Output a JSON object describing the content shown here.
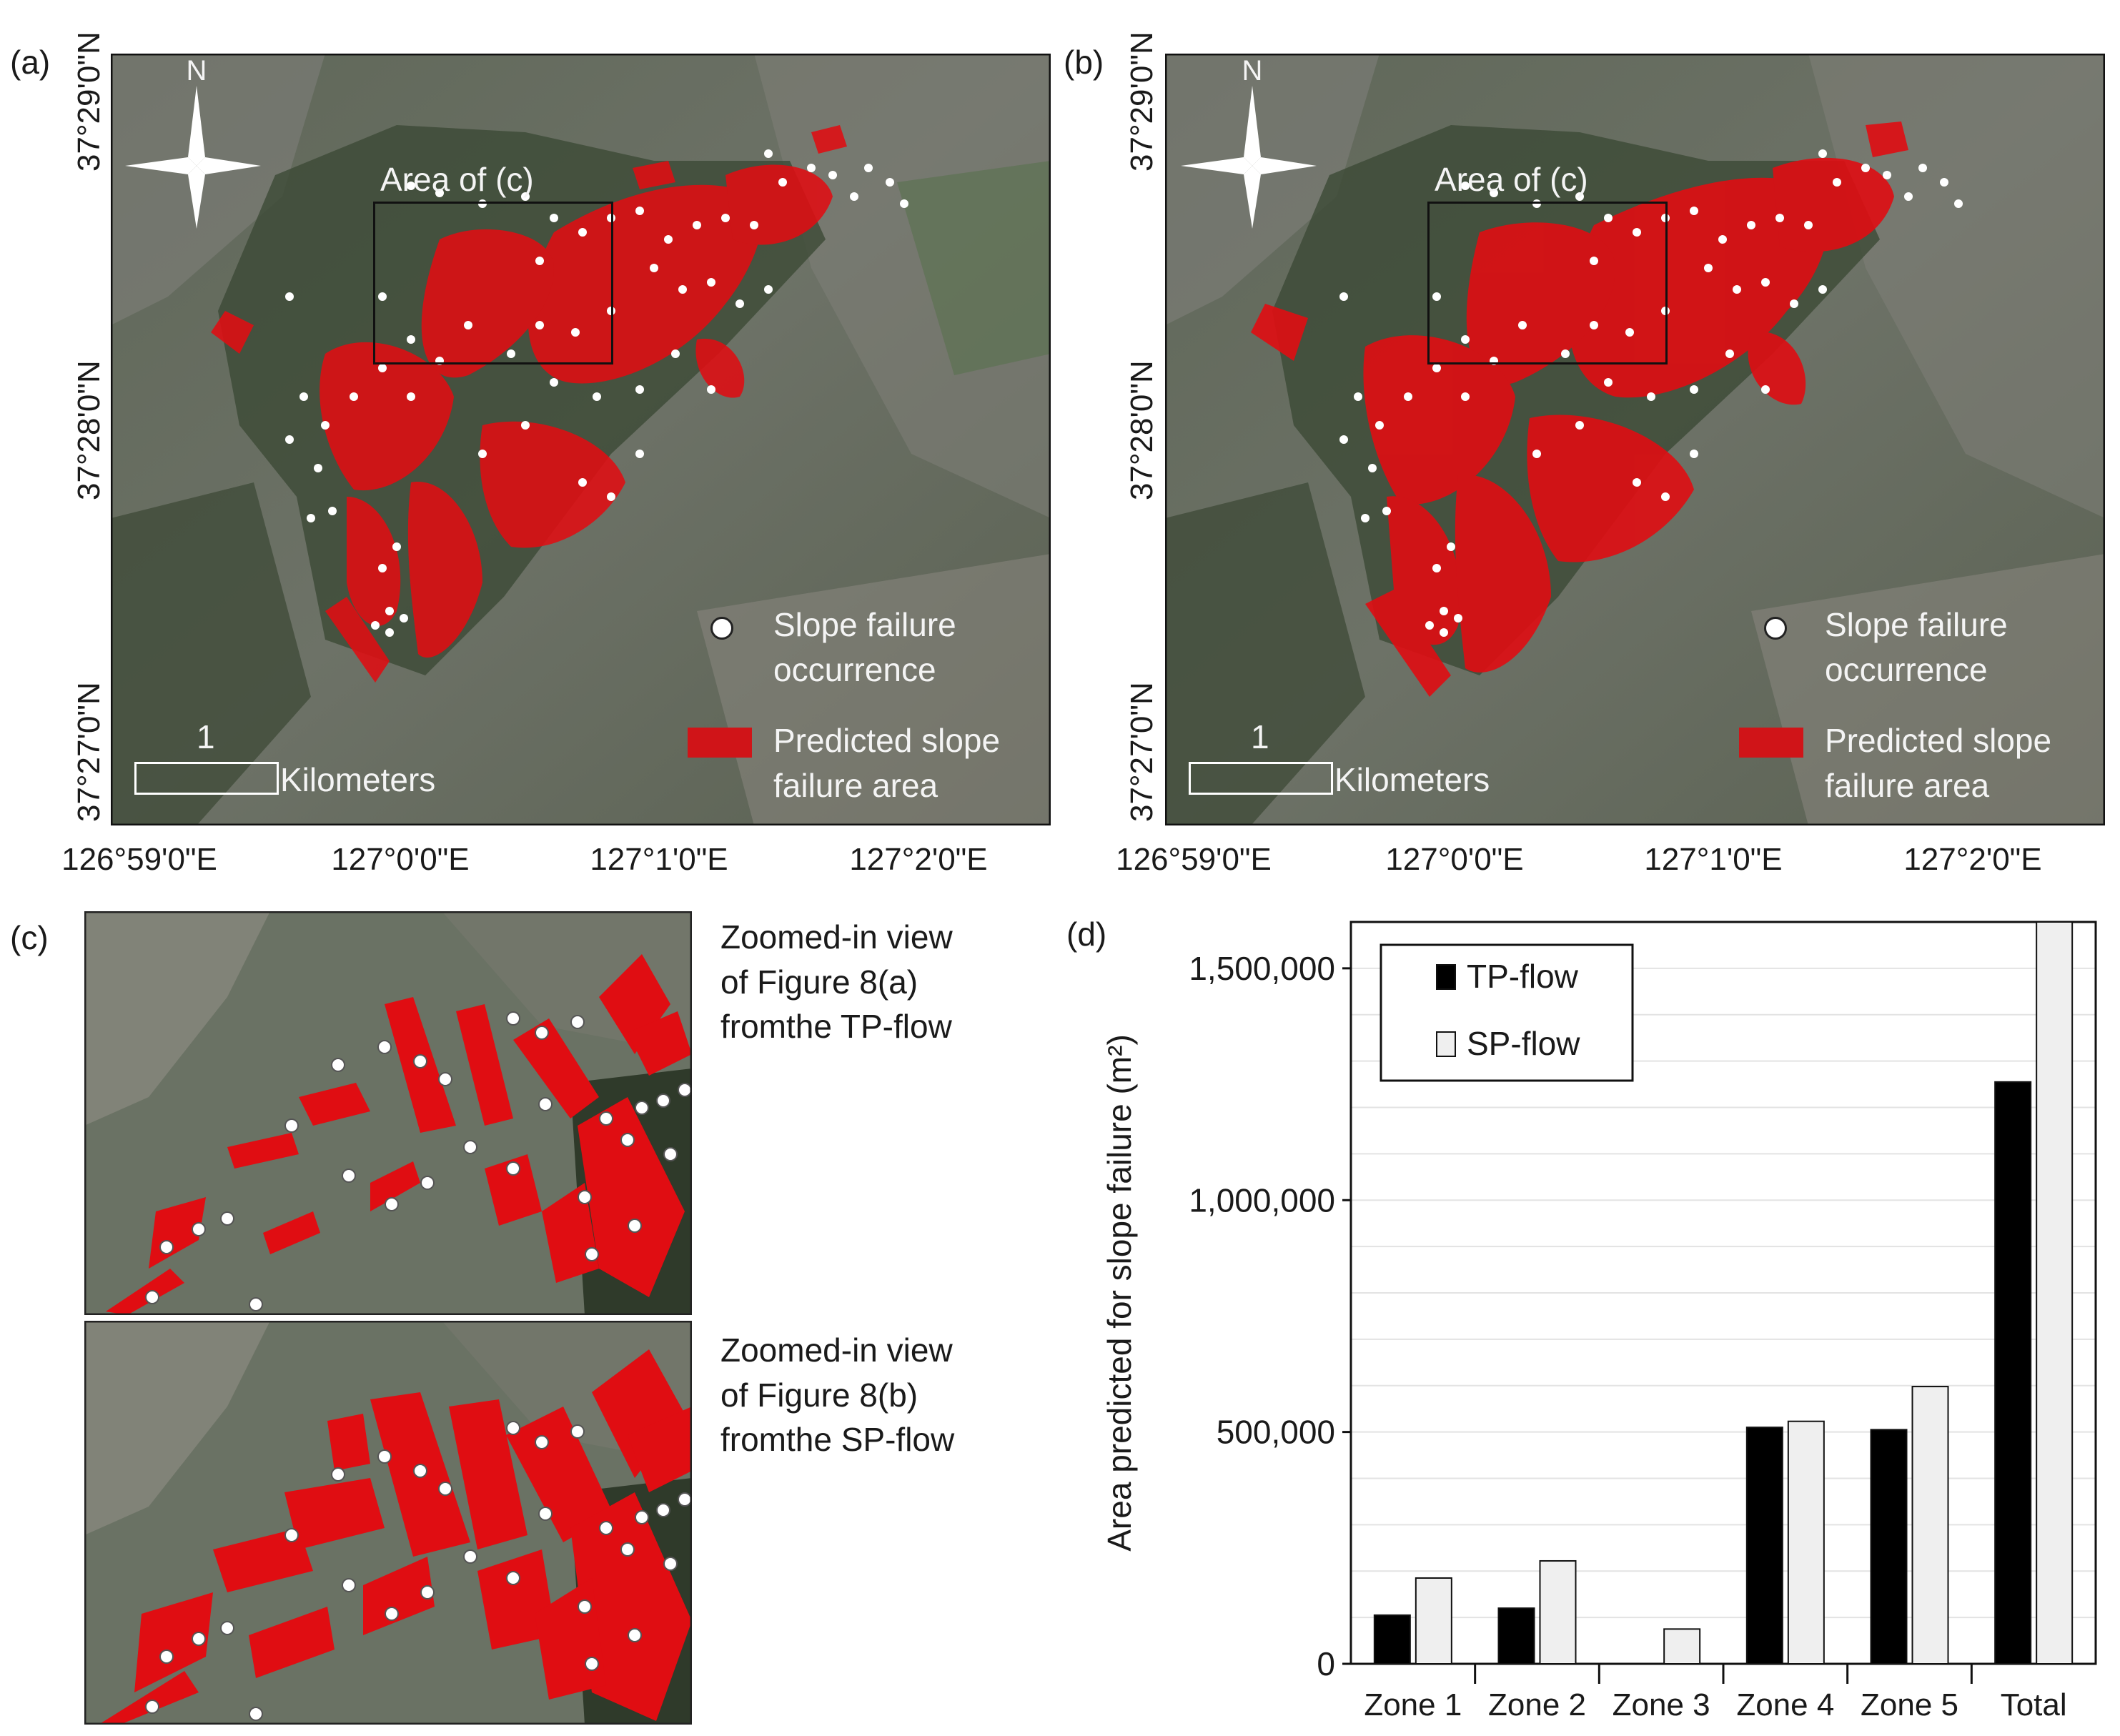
{
  "panel_a": {
    "letter": "(a)",
    "lat_labels": [
      "37°29'0\"N",
      "37°28'0\"N",
      "37°27'0\"N"
    ],
    "lon_labels": [
      "126°59'0\"E",
      "127°0'0\"E",
      "127°1'0\"E",
      "127°2'0\"E"
    ],
    "north": "N",
    "area_label": "Area of (c)",
    "scale_number": "1",
    "scale_unit": "Kilometers",
    "legend_point": "Slope failure occurrence",
    "legend_area": "Predicted slope failure area"
  },
  "panel_b": {
    "letter": "(b)",
    "lat_labels": [
      "37°29'0\"N",
      "37°28'0\"N",
      "37°27'0\"N"
    ],
    "lon_labels": [
      "126°59'0\"E",
      "127°0'0\"E",
      "127°1'0\"E",
      "127°2'0\"E"
    ],
    "north": "N",
    "area_label": "Area of (c)",
    "scale_number": "1",
    "scale_unit": "Kilometers",
    "legend_point": "Slope failure occurrence",
    "legend_area": "Predicted slope failure area"
  },
  "panel_c": {
    "letter": "(c)",
    "caption_top": [
      "Zoomed-in view",
      "of Figure 8(a)",
      "fromthe TP-flow"
    ],
    "caption_bottom": [
      "Zoomed-in view",
      "of Figure 8(b)",
      "fromthe SP-flow"
    ]
  },
  "panel_d": {
    "letter": "(d)"
  },
  "colors": {
    "failure_red": "#e00d12",
    "point_white": "#ffffff",
    "tp_bar": "#000000",
    "sp_bar": "#efefef"
  },
  "chart_data": {
    "type": "bar",
    "categories": [
      "Zone 1",
      "Zone 2",
      "Zone 3",
      "Zone 4",
      "Zone 5",
      "Total"
    ],
    "series": [
      {
        "name": "TP-flow",
        "values": [
          105000,
          120000,
          0,
          510000,
          505000,
          1255000
        ]
      },
      {
        "name": "SP-flow",
        "values": [
          185000,
          222000,
          75000,
          523000,
          598000,
          1600000
        ]
      }
    ],
    "ylabel": "Area predicted  for slope failure (m²)",
    "yticks": [
      0,
      500000,
      1000000,
      1500000
    ],
    "ytick_labels": [
      "0",
      "500,000",
      "1,000,000",
      "1,500,000"
    ],
    "ylim": [
      0,
      1600000
    ],
    "grid": true,
    "legend": "top-left"
  }
}
